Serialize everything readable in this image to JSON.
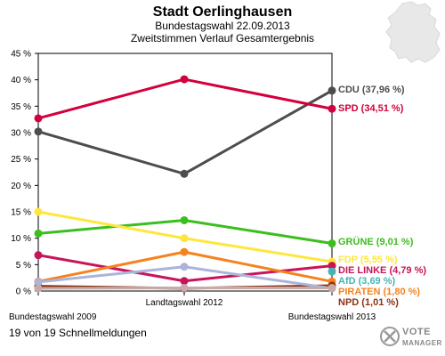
{
  "chart_data": {
    "type": "line",
    "title": "Stadt Oerlinghausen",
    "subtitle": "Bundestagswahl 22.09.2013",
    "subtitle2": "Zweitstimmen Verlauf Gesamtergebnis",
    "categories": [
      "Bundestagswahl 2009",
      "Landtagswahl 2012",
      "Bundestagswahl 2013"
    ],
    "y_ticks": [
      "0 %",
      "5 %",
      "10 %",
      "15 %",
      "20 %",
      "25 %",
      "30 %",
      "35 %",
      "40 %",
      "45 %"
    ],
    "ylim": [
      0,
      45
    ],
    "series": [
      {
        "name": "CDU",
        "label": "CDU (37,96 %)",
        "color": "#4d4d4d",
        "values": [
          30.2,
          22.2,
          37.96
        ]
      },
      {
        "name": "SPD",
        "label": "SPD (34,51 %)",
        "color": "#d2003c",
        "values": [
          32.7,
          40.1,
          34.51
        ]
      },
      {
        "name": "GRÜNE",
        "label": "GRÜNE (9,01 %)",
        "color": "#3cbe1e",
        "values": [
          10.9,
          13.4,
          9.01
        ]
      },
      {
        "name": "FDP",
        "label": "FDP (5,55 %)",
        "color": "#ffe63c",
        "values": [
          15.0,
          10.0,
          5.55
        ]
      },
      {
        "name": "DIE LINKE",
        "label": "DIE LINKE (4,79 %)",
        "color": "#c8145a",
        "values": [
          6.8,
          1.9,
          4.79
        ]
      },
      {
        "name": "AfD",
        "label": "AfD (3,69 %)",
        "color": "#46b4b4",
        "values": [
          null,
          null,
          3.69
        ]
      },
      {
        "name": "PIRATEN",
        "label": "PIRATEN (1,80 %)",
        "color": "#f5821e",
        "values": [
          1.8,
          7.4,
          1.8
        ]
      },
      {
        "name": "NPD",
        "label": "NPD (1,01 %)",
        "color": "#8c3214",
        "values": [
          0.9,
          0.5,
          1.01
        ]
      },
      {
        "name": "",
        "label": "",
        "color": "#aab4dc",
        "values": [
          1.7,
          4.6,
          0.5
        ]
      },
      {
        "name": "",
        "label": "",
        "color": "#c8aaaa",
        "values": [
          0.5,
          0.6,
          0.6
        ]
      }
    ],
    "grid": false,
    "legend": "right"
  },
  "footer": {
    "status": "19 von 19 Schnellmeldungen",
    "logo_line1": "VOTE",
    "logo_line2": "MANAGER"
  }
}
